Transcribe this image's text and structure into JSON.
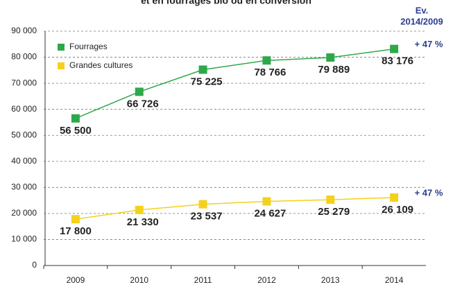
{
  "chart_data": {
    "type": "line",
    "title": "et en fourrages bio ou en conversion",
    "categories": [
      "2009",
      "2010",
      "2011",
      "2012",
      "2013",
      "2014"
    ],
    "series": [
      {
        "name": "Fourrages",
        "color": "#2ea84b",
        "values": [
          56500,
          66726,
          75225,
          78766,
          79889,
          83176
        ],
        "value_labels": [
          "56 500",
          "66 726",
          "75 225",
          "78 766",
          "79 889",
          "83 176"
        ]
      },
      {
        "name": "Grandes cultures",
        "color": "#f4d11c",
        "values": [
          17800,
          21330,
          23537,
          24627,
          25279,
          26109
        ],
        "value_labels": [
          "17 800",
          "21 330",
          "23 537",
          "24 627",
          "25 279",
          "26 109"
        ]
      }
    ],
    "annotations": [
      "Ev.",
      "2014/2009",
      "+ 47 %",
      "+ 47 %"
    ],
    "ylim": [
      0,
      90000
    ],
    "yticks": [
      0,
      {
        "value": 10000,
        "label": "10 000"
      },
      {
        "value": 20000,
        "label": "20 000"
      },
      {
        "value": 30000,
        "label": "30 000"
      },
      {
        "value": 40000,
        "label": "40 000"
      },
      {
        "value": 50000,
        "label": "50 000"
      },
      {
        "value": 60000,
        "label": "60 000"
      },
      {
        "value": 70000,
        "label": "70 000"
      },
      {
        "value": 80000,
        "label": "80 000"
      },
      {
        "value": 90000,
        "label": "90 000"
      }
    ],
    "grid": true,
    "legend": "upper left"
  }
}
